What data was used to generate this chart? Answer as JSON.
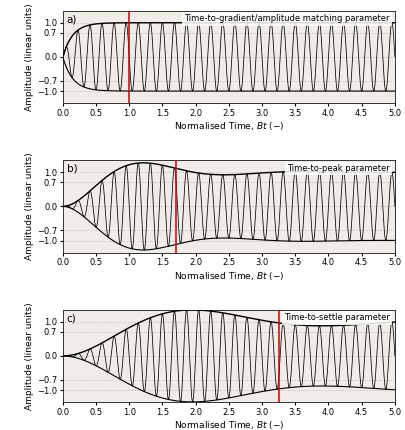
{
  "title_a": "Time-to-gradient/amplitude matching parameter",
  "title_b": "Time-to-peak parameter",
  "title_c": "Time-to-settle parameter",
  "label_a": "a)",
  "label_b": "b)",
  "label_c": "c)",
  "xlabel": "Normalised Time, $Bt$ $(-)$",
  "ylabel": "Amplitude (linear units)",
  "xlim": [
    0,
    5
  ],
  "ylim": [
    -1.35,
    1.35
  ],
  "yticks": [
    -1,
    -0.7,
    0,
    0.7,
    1
  ],
  "xticks": [
    0,
    0.5,
    1,
    1.5,
    2,
    2.5,
    3,
    3.5,
    4,
    4.5,
    5
  ],
  "red_line_a": 1.0,
  "red_line_b": 1.7,
  "red_line_c": 3.25,
  "carrier_freq": 5.5,
  "bg_color": "#f0ede8",
  "line_color": "#000000",
  "red_color": "#cc0000",
  "fig_bg": "#ffffff",
  "fontsize_label": 6.5,
  "fontsize_tick": 6,
  "fontsize_title": 6
}
